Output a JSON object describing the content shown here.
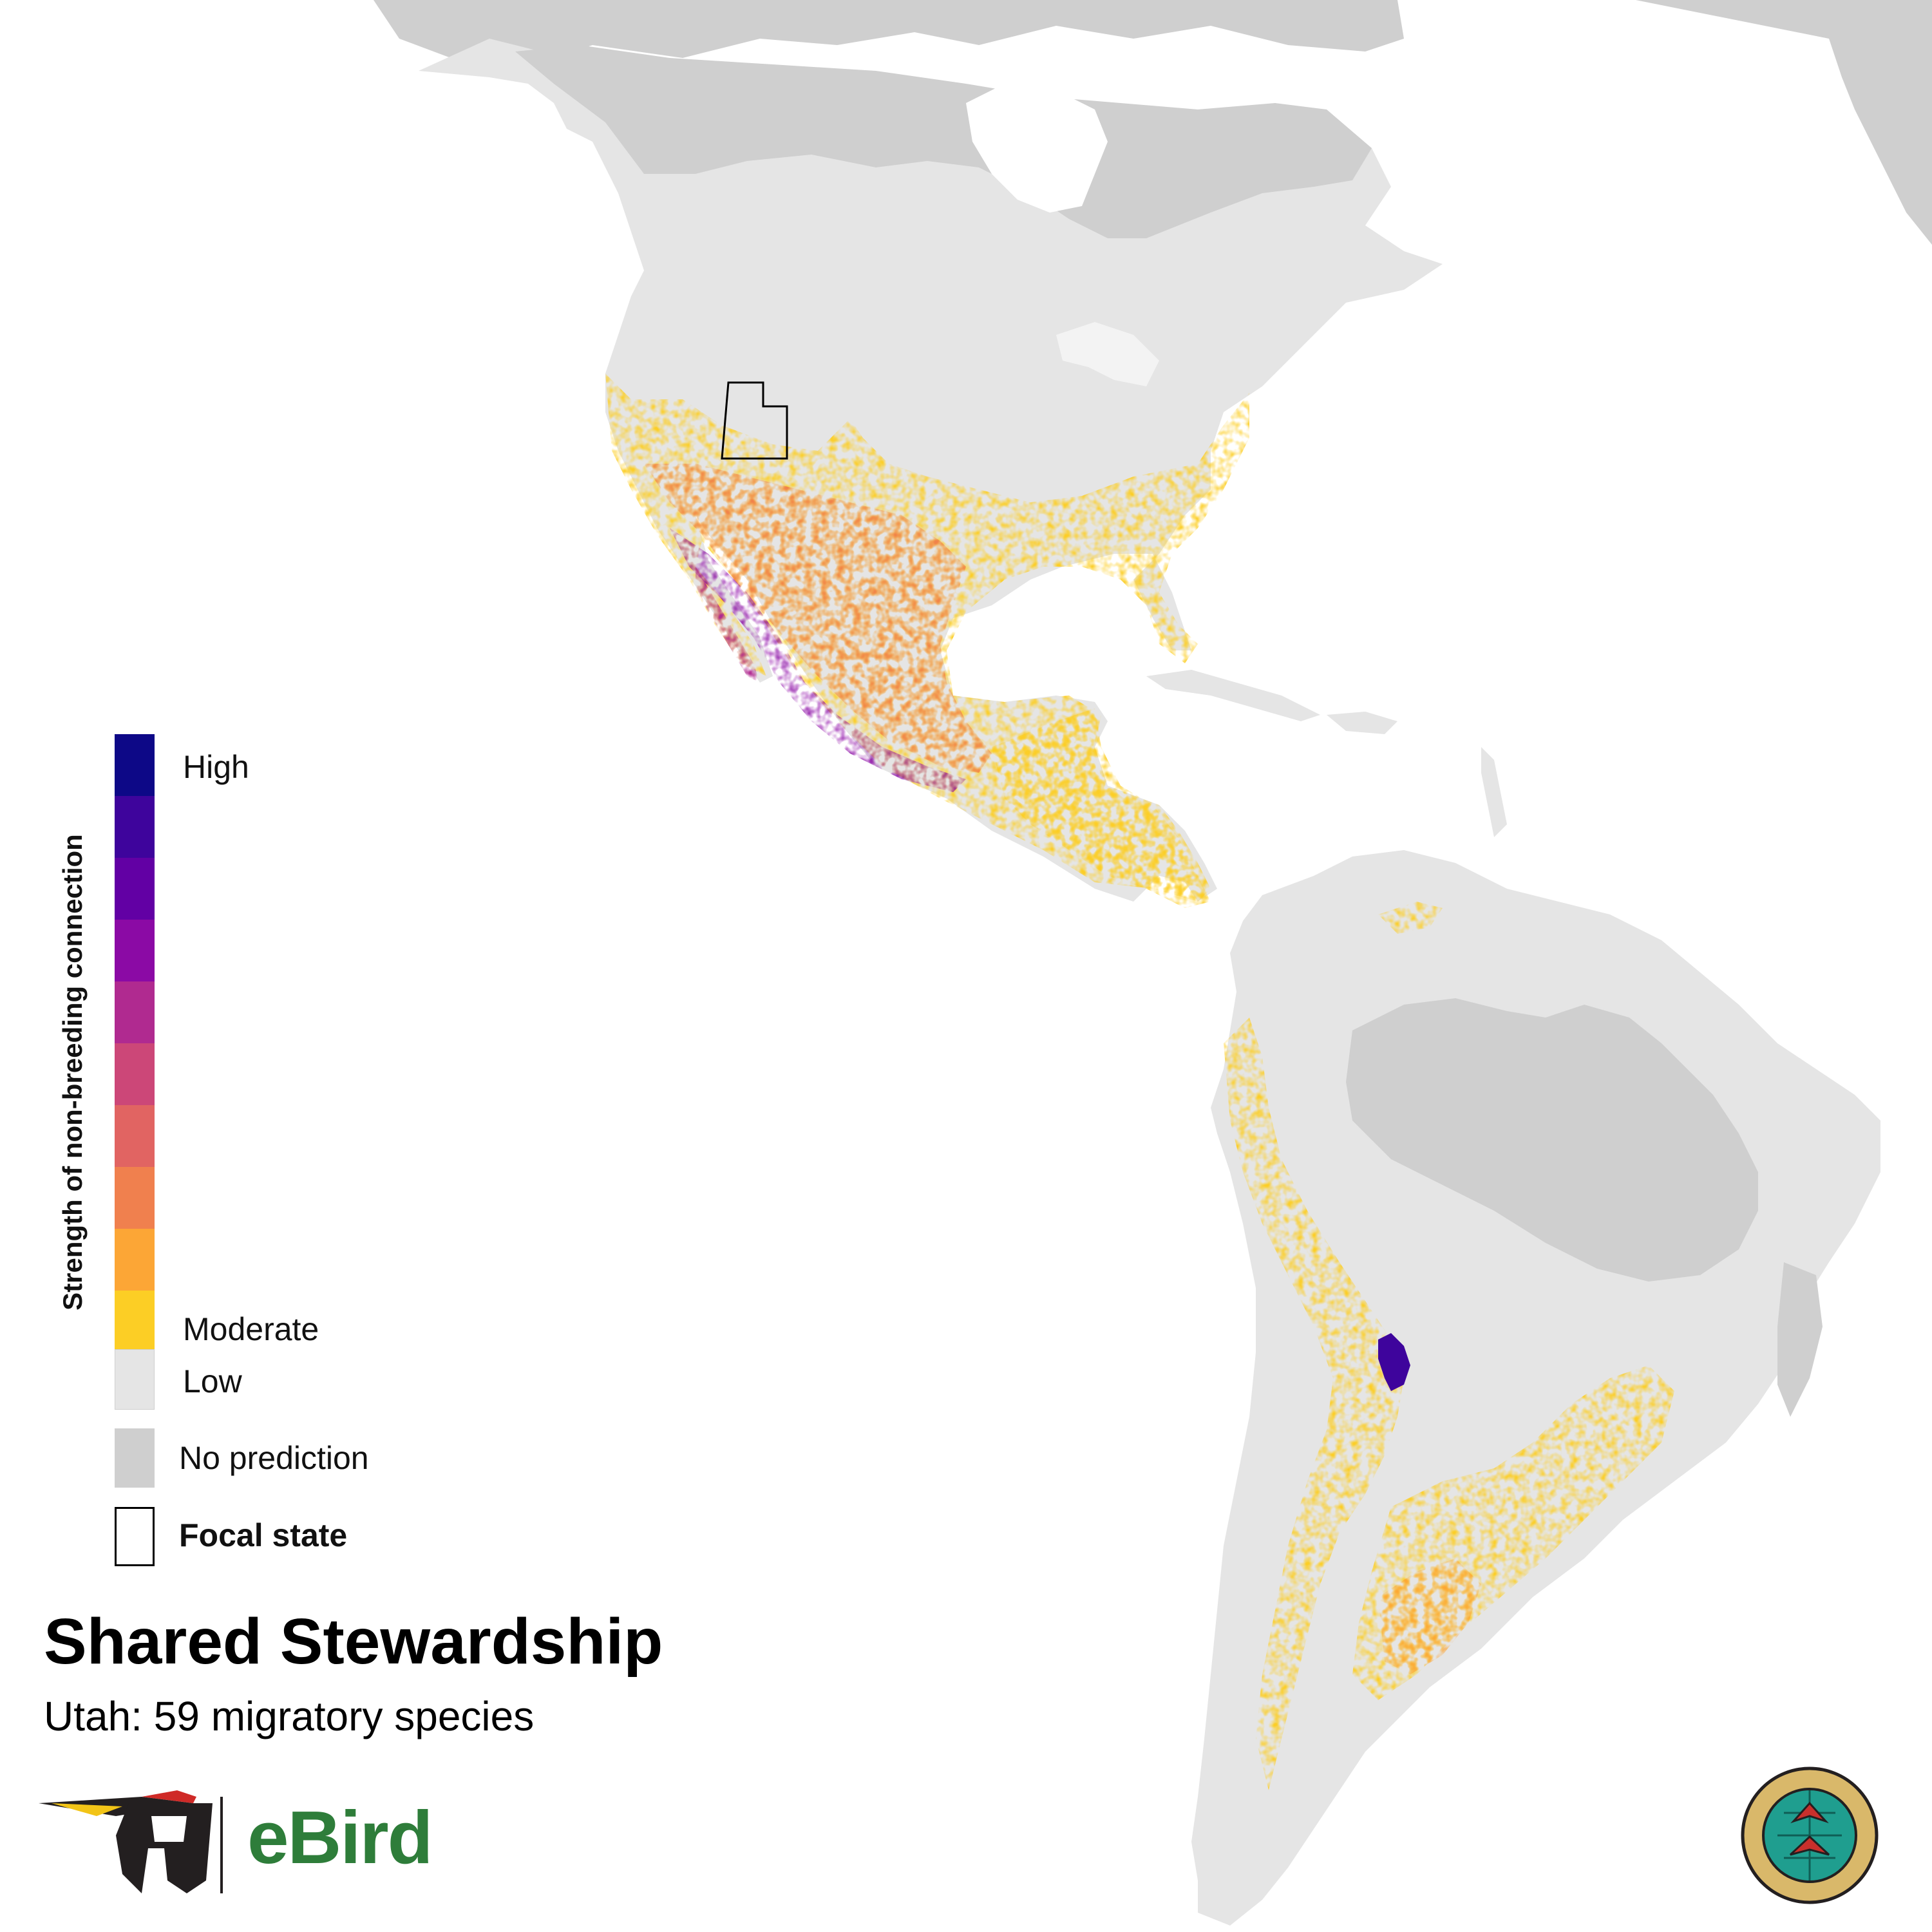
{
  "title": "Shared Stewardship",
  "subtitle": "Utah: 59 migratory species",
  "legend": {
    "axis_title": "Strength of non-breeding connection",
    "high_label": "High",
    "moderate_label": "Moderate",
    "low_label": "Low",
    "no_prediction_label": "No prediction",
    "focal_state_label": "Focal state",
    "ramp_colors": [
      "#0d0887",
      "#3e049c",
      "#6200a4",
      "#8b0aa5",
      "#b02a90",
      "#cc4778",
      "#e16462",
      "#f0804e",
      "#fca636",
      "#fcce25"
    ],
    "low_color": "#e5e5e5",
    "no_prediction_color": "#cfcfcf"
  },
  "map": {
    "focal_state": "Utah",
    "land_color": "#e5e5e5",
    "no_prediction_color": "#cfcfcf",
    "ocean_color": "#ffffff"
  },
  "branding": {
    "ebird_wordmark": "eBird",
    "partner_logo": "Partners in Flight",
    "icons": [
      "ebird-woodpecker-logo-icon",
      "partners-in-flight-seal-icon"
    ]
  }
}
